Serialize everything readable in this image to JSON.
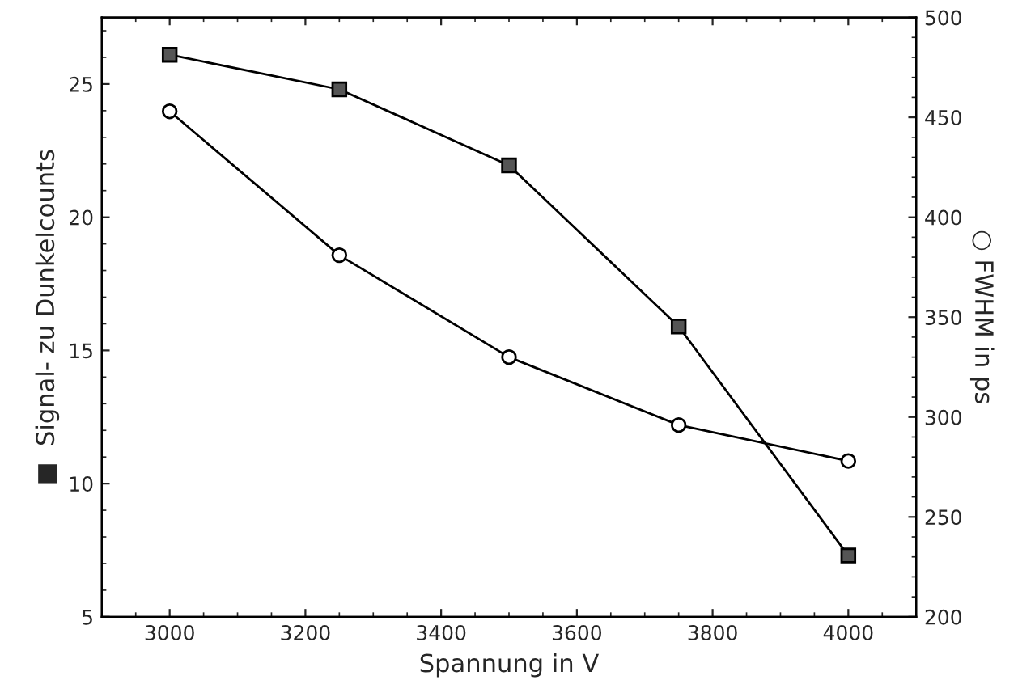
{
  "chart_data": {
    "type": "line",
    "xlabel": "Spannung in V",
    "ylabel": "■  Signal- zu Dunkelcounts",
    "y2label": "○ FWHM in ps",
    "x": [
      3000,
      3250,
      3500,
      3750,
      4000
    ],
    "series": [
      {
        "color": "#555555",
        "marker": "square",
        "values": [
          26.1,
          24.8,
          21.95,
          15.9,
          7.3
        ]
      },
      {
        "color": "#ffffff",
        "marker": "circle",
        "axis": "y2",
        "values": [
          453,
          381,
          330,
          296,
          278
        ]
      }
    ],
    "xlim": [
      2900,
      4100
    ],
    "xticks": [
      3000,
      3200,
      3400,
      3600,
      3800,
      4000
    ],
    "ylim": [
      5,
      27.5
    ],
    "yticks": [
      5,
      10,
      15,
      20,
      25
    ],
    "y2lim": [
      200,
      500
    ],
    "y2ticks": [
      200,
      250,
      300,
      350,
      400,
      450,
      500
    ],
    "grid": false,
    "legend": false,
    "line_style": "solid"
  }
}
